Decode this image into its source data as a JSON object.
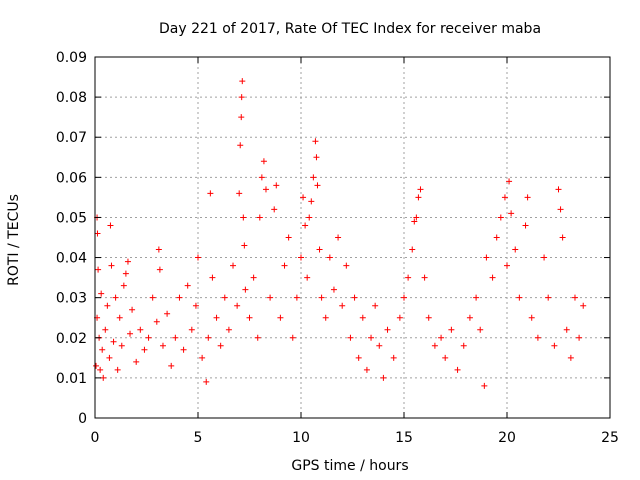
{
  "chart_data": {
    "type": "scatter",
    "title": "Day 221 of 2017, Rate Of TEC Index for receiver maba",
    "xlabel": "GPS time / hours",
    "ylabel": "ROTI / TECUs",
    "xlim": [
      0,
      25
    ],
    "ylim": [
      0,
      0.09
    ],
    "x_ticks": [
      0,
      5,
      10,
      15,
      20,
      25
    ],
    "x_tick_labels": [
      "0",
      "5",
      "10",
      "15",
      "20",
      "25"
    ],
    "y_ticks": [
      0,
      0.01,
      0.02,
      0.03,
      0.04,
      0.05,
      0.06,
      0.07,
      0.08,
      0.09
    ],
    "y_tick_labels": [
      "0",
      "0.01",
      "0.02",
      "0.03",
      "0.04",
      "0.05",
      "0.06",
      "0.07",
      "0.08",
      "0.09"
    ],
    "grid": true,
    "marker": "+",
    "color": "#ff0000",
    "x_range_of_data": [
      0,
      23.7
    ],
    "series": [
      {
        "name": "ROTI",
        "points": [
          [
            0.05,
            0.013
          ],
          [
            0.1,
            0.025
          ],
          [
            0.1,
            0.05
          ],
          [
            0.12,
            0.046
          ],
          [
            0.15,
            0.037
          ],
          [
            0.2,
            0.02
          ],
          [
            0.25,
            0.012
          ],
          [
            0.3,
            0.031
          ],
          [
            0.35,
            0.017
          ],
          [
            0.4,
            0.01
          ],
          [
            0.5,
            0.022
          ],
          [
            0.6,
            0.028
          ],
          [
            0.7,
            0.015
          ],
          [
            0.75,
            0.048
          ],
          [
            0.8,
            0.038
          ],
          [
            0.9,
            0.019
          ],
          [
            1.0,
            0.03
          ],
          [
            1.1,
            0.012
          ],
          [
            1.2,
            0.025
          ],
          [
            1.3,
            0.018
          ],
          [
            1.4,
            0.033
          ],
          [
            1.5,
            0.036
          ],
          [
            1.6,
            0.039
          ],
          [
            1.7,
            0.021
          ],
          [
            1.8,
            0.027
          ],
          [
            2.0,
            0.014
          ],
          [
            2.2,
            0.022
          ],
          [
            2.4,
            0.017
          ],
          [
            2.6,
            0.02
          ],
          [
            2.8,
            0.03
          ],
          [
            3.0,
            0.024
          ],
          [
            3.1,
            0.042
          ],
          [
            3.15,
            0.037
          ],
          [
            3.3,
            0.018
          ],
          [
            3.5,
            0.026
          ],
          [
            3.7,
            0.013
          ],
          [
            3.9,
            0.02
          ],
          [
            4.1,
            0.03
          ],
          [
            4.3,
            0.017
          ],
          [
            4.5,
            0.033
          ],
          [
            4.7,
            0.022
          ],
          [
            4.9,
            0.028
          ],
          [
            5.0,
            0.04
          ],
          [
            5.2,
            0.015
          ],
          [
            5.4,
            0.009
          ],
          [
            5.5,
            0.02
          ],
          [
            5.6,
            0.056
          ],
          [
            5.7,
            0.035
          ],
          [
            5.9,
            0.025
          ],
          [
            6.1,
            0.018
          ],
          [
            6.3,
            0.03
          ],
          [
            6.5,
            0.022
          ],
          [
            6.7,
            0.038
          ],
          [
            6.9,
            0.028
          ],
          [
            7.0,
            0.056
          ],
          [
            7.05,
            0.068
          ],
          [
            7.1,
            0.075
          ],
          [
            7.12,
            0.08
          ],
          [
            7.15,
            0.084
          ],
          [
            7.2,
            0.05
          ],
          [
            7.25,
            0.043
          ],
          [
            7.3,
            0.032
          ],
          [
            7.5,
            0.025
          ],
          [
            7.7,
            0.035
          ],
          [
            7.9,
            0.02
          ],
          [
            8.0,
            0.05
          ],
          [
            8.1,
            0.06
          ],
          [
            8.2,
            0.064
          ],
          [
            8.3,
            0.057
          ],
          [
            8.5,
            0.03
          ],
          [
            8.7,
            0.052
          ],
          [
            8.8,
            0.058
          ],
          [
            9.0,
            0.025
          ],
          [
            9.2,
            0.038
          ],
          [
            9.4,
            0.045
          ],
          [
            9.6,
            0.02
          ],
          [
            9.8,
            0.03
          ],
          [
            10.0,
            0.04
          ],
          [
            10.1,
            0.055
          ],
          [
            10.2,
            0.048
          ],
          [
            10.3,
            0.035
          ],
          [
            10.4,
            0.05
          ],
          [
            10.5,
            0.054
          ],
          [
            10.6,
            0.06
          ],
          [
            10.7,
            0.069
          ],
          [
            10.75,
            0.065
          ],
          [
            10.8,
            0.058
          ],
          [
            10.9,
            0.042
          ],
          [
            11.0,
            0.03
          ],
          [
            11.2,
            0.025
          ],
          [
            11.4,
            0.04
          ],
          [
            11.6,
            0.032
          ],
          [
            11.8,
            0.045
          ],
          [
            12.0,
            0.028
          ],
          [
            12.2,
            0.038
          ],
          [
            12.4,
            0.02
          ],
          [
            12.6,
            0.03
          ],
          [
            12.8,
            0.015
          ],
          [
            13.0,
            0.025
          ],
          [
            13.2,
            0.012
          ],
          [
            13.4,
            0.02
          ],
          [
            13.6,
            0.028
          ],
          [
            13.8,
            0.018
          ],
          [
            14.0,
            0.01
          ],
          [
            14.2,
            0.022
          ],
          [
            14.5,
            0.015
          ],
          [
            14.8,
            0.025
          ],
          [
            15.0,
            0.03
          ],
          [
            15.2,
            0.035
          ],
          [
            15.4,
            0.042
          ],
          [
            15.5,
            0.049
          ],
          [
            15.6,
            0.05
          ],
          [
            15.7,
            0.055
          ],
          [
            15.8,
            0.057
          ],
          [
            16.0,
            0.035
          ],
          [
            16.2,
            0.025
          ],
          [
            16.5,
            0.018
          ],
          [
            16.8,
            0.02
          ],
          [
            17.0,
            0.015
          ],
          [
            17.3,
            0.022
          ],
          [
            17.6,
            0.012
          ],
          [
            17.9,
            0.018
          ],
          [
            18.2,
            0.025
          ],
          [
            18.5,
            0.03
          ],
          [
            18.7,
            0.022
          ],
          [
            18.9,
            0.008
          ],
          [
            19.0,
            0.04
          ],
          [
            19.3,
            0.035
          ],
          [
            19.5,
            0.045
          ],
          [
            19.7,
            0.05
          ],
          [
            19.9,
            0.055
          ],
          [
            20.0,
            0.038
          ],
          [
            20.1,
            0.059
          ],
          [
            20.2,
            0.051
          ],
          [
            20.4,
            0.042
          ],
          [
            20.6,
            0.03
          ],
          [
            20.9,
            0.048
          ],
          [
            21.0,
            0.055
          ],
          [
            21.2,
            0.025
          ],
          [
            21.5,
            0.02
          ],
          [
            21.8,
            0.04
          ],
          [
            22.0,
            0.03
          ],
          [
            22.3,
            0.018
          ],
          [
            22.5,
            0.057
          ],
          [
            22.6,
            0.052
          ],
          [
            22.7,
            0.045
          ],
          [
            22.9,
            0.022
          ],
          [
            23.1,
            0.015
          ],
          [
            23.3,
            0.03
          ],
          [
            23.5,
            0.02
          ],
          [
            23.7,
            0.028
          ]
        ]
      }
    ]
  }
}
